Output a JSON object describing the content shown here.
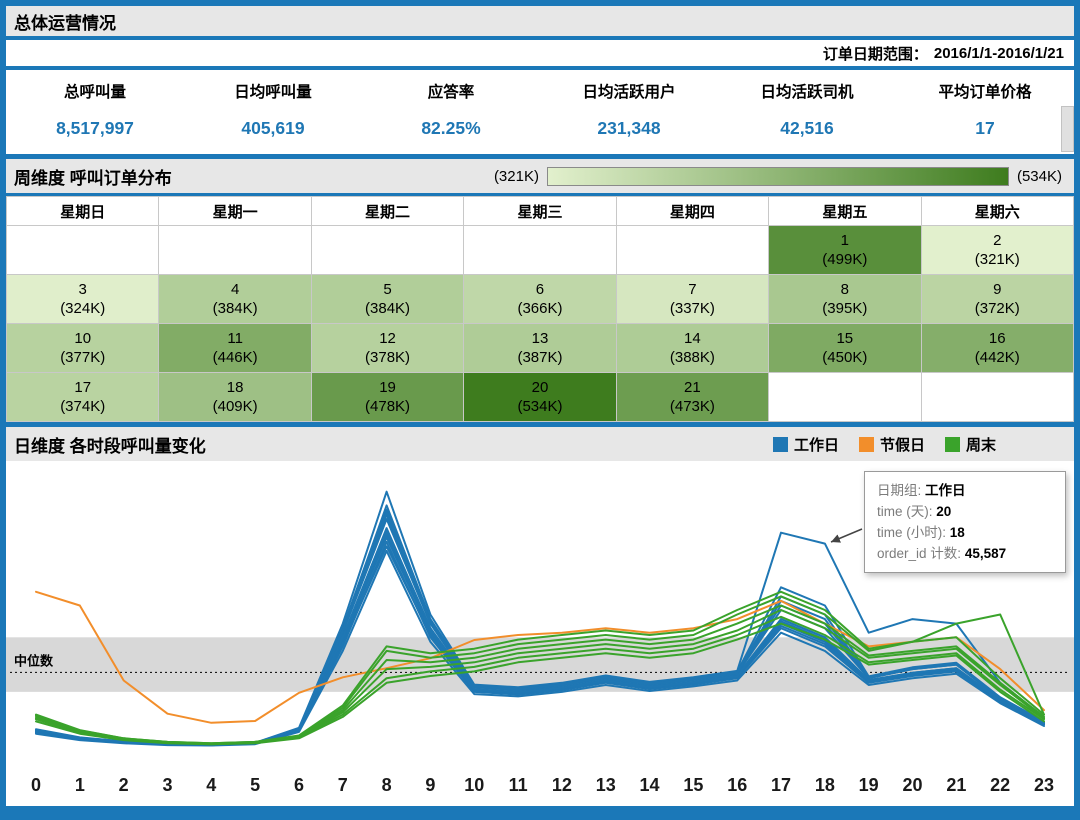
{
  "header": {
    "title": "总体运营情况",
    "date_range_label": "订单日期范围：",
    "date_range_value": "2016/1/1-2016/1/21"
  },
  "kpis": [
    {
      "label": "总呼叫量",
      "value": "8,517,997"
    },
    {
      "label": "日均呼叫量",
      "value": "405,619"
    },
    {
      "label": "应答率",
      "value": "82.25%"
    },
    {
      "label": "日均活跃用户",
      "value": "231,348"
    },
    {
      "label": "日均活跃司机",
      "value": "42,516"
    },
    {
      "label": "平均订单价格",
      "value": "17"
    }
  ],
  "weekly": {
    "title": "周维度 呼叫订单分布",
    "legend_min": "(321K)",
    "legend_max": "(534K)"
  },
  "daily": {
    "title": "日维度 各时段呼叫量变化",
    "legend": [
      {
        "label": "工作日",
        "color": "#1f77b4"
      },
      {
        "label": "节假日",
        "color": "#f28e2b"
      },
      {
        "label": "周末",
        "color": "#3aa32b"
      }
    ],
    "median_label": "中位数",
    "tooltip": {
      "rows": [
        {
          "label": "日期组:",
          "value": "工作日"
        },
        {
          "label": "time (天):",
          "value": "20"
        },
        {
          "label": "time (小时):",
          "value": "18"
        },
        {
          "label": "order_id 计数:",
          "value": "45,587"
        }
      ]
    }
  },
  "chart_data": [
    {
      "type": "heatmap",
      "subtype": "calendar",
      "title": "周维度 呼叫订单分布",
      "columns": [
        "星期日",
        "星期一",
        "星期二",
        "星期三",
        "星期四",
        "星期五",
        "星期六"
      ],
      "units": "thousand calls (K)",
      "min_k": 321,
      "max_k": 534,
      "color_low": "#e2f0cd",
      "color_high": "#3e7c1e",
      "weeks": [
        [
          null,
          null,
          null,
          null,
          null,
          {
            "day": 1,
            "k": 499
          },
          {
            "day": 2,
            "k": 321
          }
        ],
        [
          {
            "day": 3,
            "k": 324
          },
          {
            "day": 4,
            "k": 384
          },
          {
            "day": 5,
            "k": 384
          },
          {
            "day": 6,
            "k": 366
          },
          {
            "day": 7,
            "k": 337
          },
          {
            "day": 8,
            "k": 395
          },
          {
            "day": 9,
            "k": 372
          }
        ],
        [
          {
            "day": 10,
            "k": 377
          },
          {
            "day": 11,
            "k": 446
          },
          {
            "day": 12,
            "k": 378
          },
          {
            "day": 13,
            "k": 387
          },
          {
            "day": 14,
            "k": 388
          },
          {
            "day": 15,
            "k": 450
          },
          {
            "day": 16,
            "k": 442
          }
        ],
        [
          {
            "day": 17,
            "k": 374
          },
          {
            "day": 18,
            "k": 409
          },
          {
            "day": 19,
            "k": 478
          },
          {
            "day": 20,
            "k": 534
          },
          {
            "day": 21,
            "k": 473
          },
          null,
          null
        ]
      ]
    },
    {
      "type": "line",
      "title": "日维度 各时段呼叫量变化",
      "xlabel": "time (小时)",
      "x": [
        0,
        1,
        2,
        3,
        4,
        5,
        6,
        7,
        8,
        9,
        10,
        11,
        12,
        13,
        14,
        15,
        16,
        17,
        18,
        19,
        20,
        21,
        22,
        23
      ],
      "units": "thousands of calls (K)",
      "ymax_k": 62,
      "median_k": 17.3,
      "band_k": [
        13,
        25
      ],
      "series": [
        {
          "group": "节假日",
          "day": 1,
          "values": [
            35,
            32,
            15.5,
            8.2,
            6.2,
            6.6,
            12.8,
            16.2,
            18.2,
            20.4,
            24.4,
            25.5,
            26,
            27,
            26,
            27,
            29,
            33,
            28,
            23,
            24,
            25,
            18,
            9
          ]
        },
        {
          "group": "工作日",
          "day": 4,
          "values": [
            3.8,
            2.4,
            1.7,
            1.3,
            1.2,
            1.5,
            4.2,
            22,
            44,
            24,
            12.5,
            12,
            13,
            14.5,
            13.2,
            14.2,
            15.5,
            26,
            22,
            14.5,
            16,
            17,
            10.5,
            5.5
          ]
        },
        {
          "group": "工作日",
          "day": 5,
          "values": [
            4,
            2.5,
            1.8,
            1.4,
            1.3,
            1.6,
            4.4,
            23,
            46,
            25,
            13,
            12.4,
            13.4,
            15,
            13.6,
            14.6,
            16,
            27,
            23,
            15,
            16.5,
            17.5,
            10.8,
            5.8
          ]
        },
        {
          "group": "工作日",
          "day": 6,
          "values": [
            4.2,
            2.7,
            1.9,
            1.4,
            1.3,
            1.6,
            4.6,
            24,
            47,
            26,
            13.2,
            12.6,
            13.6,
            15.2,
            13.8,
            14.8,
            16.2,
            28,
            24,
            15.2,
            17,
            18,
            11,
            6
          ]
        },
        {
          "group": "工作日",
          "day": 7,
          "values": [
            4.1,
            2.6,
            1.8,
            1.4,
            1.3,
            1.6,
            4.5,
            23.5,
            45,
            25.5,
            13.1,
            12.5,
            13.5,
            15.1,
            13.7,
            14.7,
            16.1,
            27.5,
            23.5,
            15.1,
            16.8,
            17.8,
            10.9,
            5.9
          ]
        },
        {
          "group": "工作日",
          "day": 8,
          "values": [
            4.3,
            2.7,
            1.9,
            1.5,
            1.4,
            1.7,
            4.7,
            25,
            49,
            27,
            13.6,
            13,
            14,
            15.6,
            14.2,
            15.2,
            16.6,
            29,
            25,
            15.6,
            17.2,
            18.2,
            11.2,
            6.1
          ]
        },
        {
          "group": "工作日",
          "day": 11,
          "values": [
            4.5,
            2.8,
            2,
            1.5,
            1.4,
            1.7,
            4.8,
            26,
            52,
            28,
            14,
            13.4,
            14.4,
            16,
            14.6,
            15.6,
            17,
            31,
            27,
            16,
            18,
            19,
            11.5,
            6.3
          ]
        },
        {
          "group": "工作日",
          "day": 12,
          "values": [
            4.2,
            2.6,
            1.9,
            1.4,
            1.3,
            1.6,
            4.6,
            24,
            47.5,
            26,
            13.3,
            12.7,
            13.7,
            15.3,
            13.9,
            14.9,
            16.3,
            28.5,
            24.5,
            15.3,
            17,
            18,
            11,
            6
          ]
        },
        {
          "group": "工作日",
          "day": 13,
          "values": [
            4.3,
            2.7,
            1.9,
            1.5,
            1.4,
            1.7,
            4.7,
            24.5,
            48,
            26.5,
            13.4,
            12.8,
            13.8,
            15.4,
            14,
            15,
            16.4,
            28.5,
            24.5,
            15.4,
            17.1,
            18.1,
            11.1,
            6
          ]
        },
        {
          "group": "工作日",
          "day": 14,
          "values": [
            4.4,
            2.7,
            1.9,
            1.5,
            1.4,
            1.7,
            4.7,
            25,
            48.5,
            27,
            13.5,
            12.9,
            13.9,
            15.5,
            14.1,
            15.1,
            16.5,
            29,
            25,
            15.5,
            17.2,
            18.2,
            11.2,
            6.1
          ]
        },
        {
          "group": "工作日",
          "day": 15,
          "values": [
            4.6,
            2.9,
            2,
            1.6,
            1.5,
            1.8,
            4.9,
            26.5,
            53,
            28.5,
            14.2,
            13.6,
            14.6,
            16.2,
            14.8,
            15.8,
            17.2,
            32,
            28,
            16.2,
            18.2,
            19.2,
            11.7,
            6.4
          ]
        },
        {
          "group": "工作日",
          "day": 18,
          "values": [
            4.5,
            2.8,
            2,
            1.5,
            1.4,
            1.7,
            4.8,
            26,
            51,
            28,
            14,
            13.4,
            14.4,
            16,
            14.6,
            15.6,
            17,
            33,
            29,
            16,
            18,
            19,
            11.5,
            6.3
          ]
        },
        {
          "group": "工作日",
          "day": 19,
          "values": [
            4.7,
            2.9,
            2.1,
            1.6,
            1.5,
            1.8,
            5,
            27,
            54,
            29,
            14.4,
            13.8,
            14.8,
            16.4,
            15,
            16,
            17.4,
            36,
            32,
            16.4,
            18.4,
            19.4,
            11.8,
            6.5
          ]
        },
        {
          "group": "工作日",
          "day": 20,
          "values": [
            4.8,
            3,
            2.1,
            1.6,
            1.5,
            1.8,
            5.1,
            28,
            57,
            30,
            14.6,
            14,
            15,
            16.6,
            15.2,
            16.2,
            17.6,
            48,
            45.6,
            26,
            29,
            28,
            15,
            7.5
          ]
        },
        {
          "group": "工作日",
          "day": 21,
          "values": [
            4.6,
            2.9,
            2,
            1.6,
            1.5,
            1.8,
            4.9,
            26.5,
            52.5,
            28.5,
            14.2,
            13.6,
            14.6,
            16.2,
            14.8,
            15.8,
            17.2,
            34,
            30,
            16.2,
            18.2,
            19.2,
            11.7,
            6.4
          ]
        },
        {
          "group": "周末",
          "day": 2,
          "values": [
            6.5,
            3.8,
            2.4,
            1.7,
            1.5,
            1.7,
            2.8,
            7.5,
            15,
            16.5,
            17.5,
            19.5,
            20.5,
            21.5,
            20.5,
            21.5,
            24.5,
            28,
            24.5,
            19,
            20,
            21,
            13,
            6.5
          ]
        },
        {
          "group": "周末",
          "day": 3,
          "values": [
            7,
            4,
            2.5,
            1.8,
            1.5,
            1.8,
            3,
            8,
            16,
            17.5,
            18.5,
            20.5,
            21.5,
            22.5,
            21.5,
            22.5,
            25.5,
            29.5,
            25.5,
            19.5,
            20.5,
            21.5,
            13.5,
            7
          ]
        },
        {
          "group": "周末",
          "day": 9,
          "values": [
            7.2,
            4.2,
            2.6,
            1.9,
            1.6,
            1.9,
            3.1,
            8.5,
            18,
            18.5,
            19.5,
            21.5,
            22.5,
            23.5,
            22.5,
            23.5,
            26.5,
            31,
            27,
            20.5,
            21.5,
            22.5,
            14.5,
            7.2
          ]
        },
        {
          "group": "周末",
          "day": 10,
          "values": [
            7.5,
            4.3,
            2.7,
            1.9,
            1.6,
            1.9,
            3.2,
            9,
            20,
            19.5,
            20.5,
            22.5,
            23.5,
            24.5,
            23.5,
            24.5,
            28,
            32,
            28,
            21,
            22,
            23,
            15,
            7.5
          ]
        },
        {
          "group": "周末",
          "day": 16,
          "values": [
            7.8,
            4.5,
            2.8,
            2,
            1.7,
            2,
            3.3,
            9.5,
            22,
            20.5,
            21.5,
            23.5,
            24.5,
            25.5,
            24.5,
            25.5,
            30,
            34,
            30,
            22,
            24,
            28,
            30,
            8
          ]
        },
        {
          "group": "周末",
          "day": 17,
          "values": [
            8,
            4.6,
            2.8,
            2,
            1.7,
            2,
            3.4,
            10,
            23,
            21.5,
            22.5,
            24.5,
            25.5,
            26.5,
            25.5,
            26.5,
            31,
            35,
            31,
            22.5,
            24,
            25,
            16,
            8
          ]
        }
      ]
    }
  ]
}
